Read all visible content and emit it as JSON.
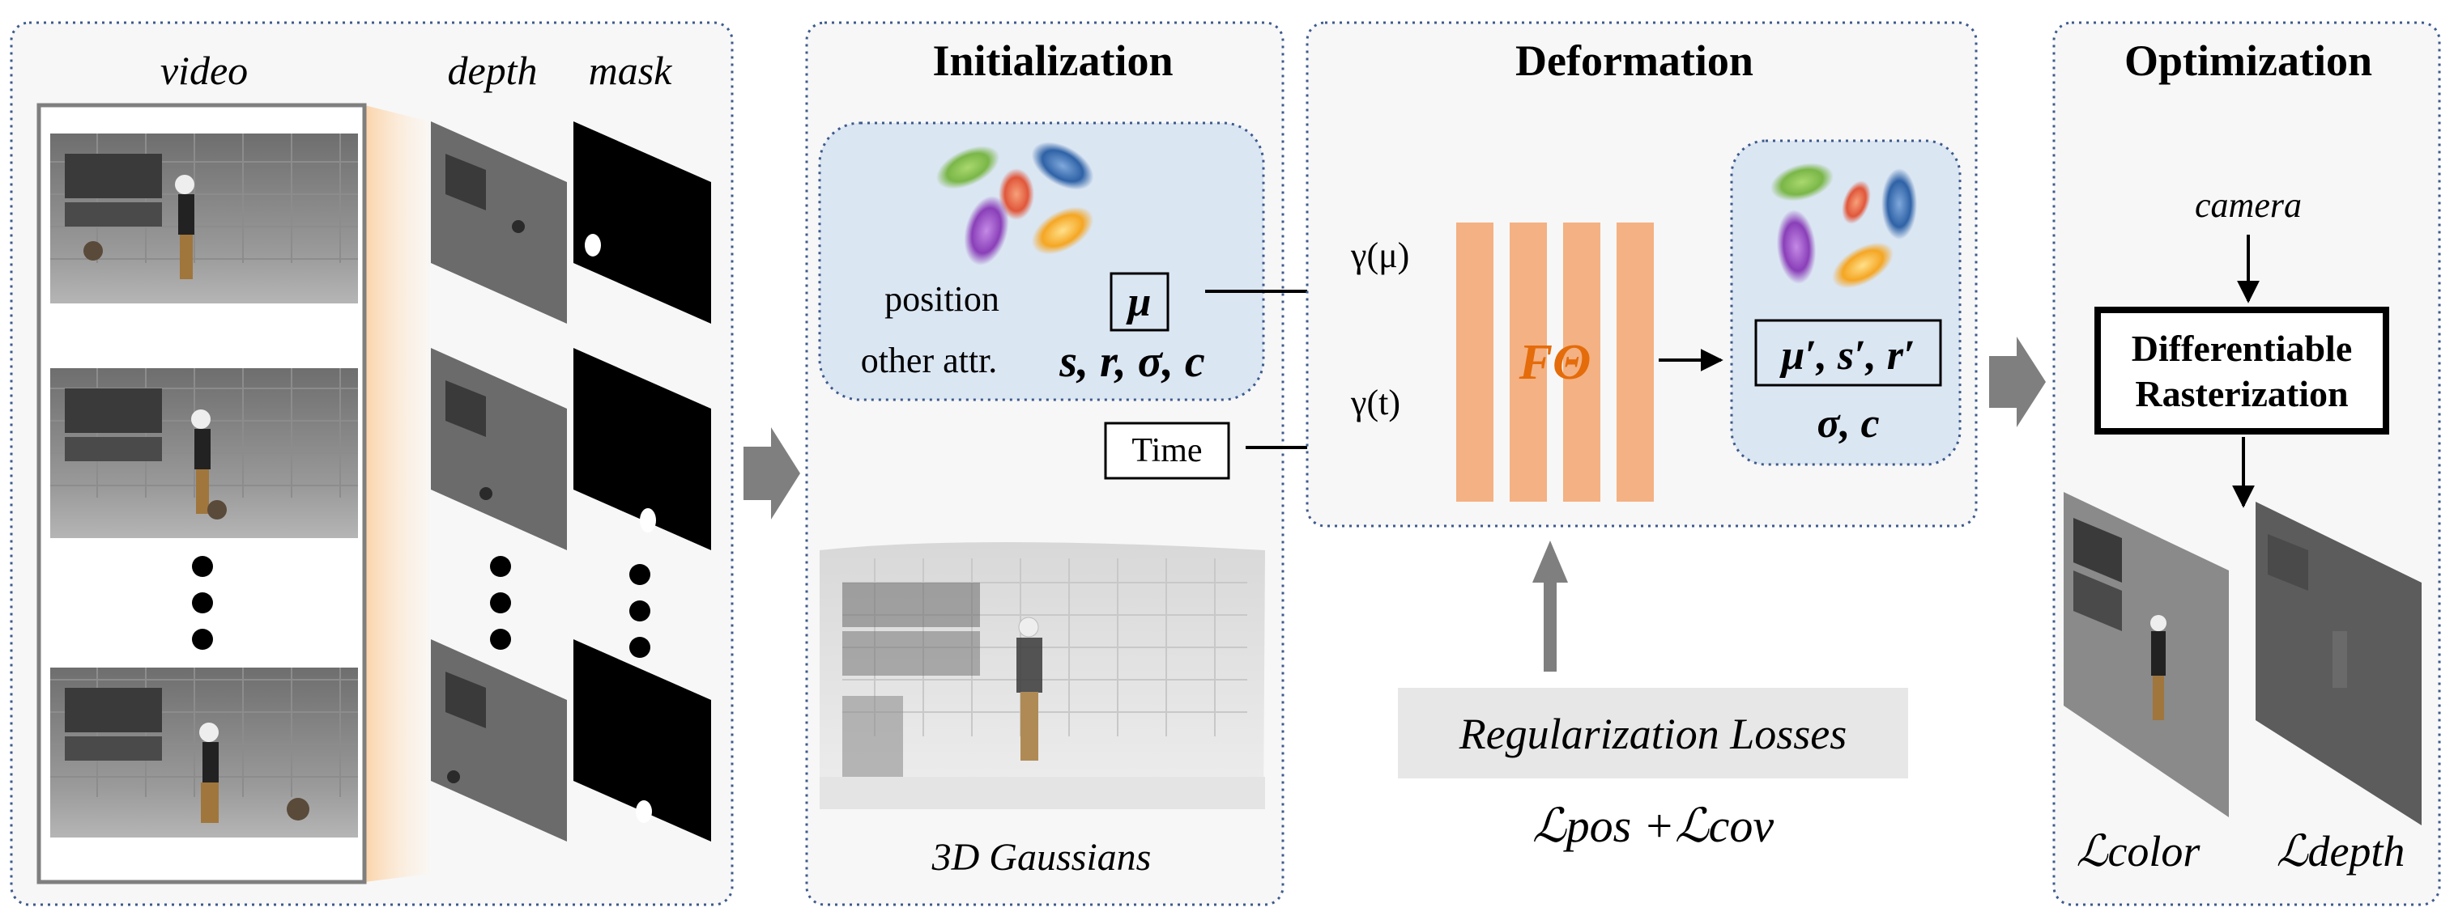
{
  "panels": {
    "input": {
      "video_label": "video",
      "depth_label": "depth",
      "mask_label": "mask"
    },
    "initialization": {
      "title": "Initialization",
      "position_label": "position",
      "other_attr_label": "other attr.",
      "mu_symbol": "μ",
      "attrs": "s, r, σ, c",
      "time_label": "Time",
      "gaussians_caption": "3D Gaussians"
    },
    "deformation": {
      "title": "Deformation",
      "gamma_mu": "γ(μ)",
      "gamma_t": "γ(t)",
      "network_label": "FΘ",
      "output_primed": "μ′, s′, r′",
      "output_rest": "σ, c",
      "reg_losses_label": "Regularization Losses",
      "reg_losses_formula": "ℒpos +ℒcov"
    },
    "optimization": {
      "title": "Optimization",
      "camera_label": "camera",
      "rasterizer_line1": "Differentiable",
      "rasterizer_line2": "Rasterization",
      "loss_color": "ℒcolor",
      "loss_depth": "ℒdepth"
    }
  },
  "colors": {
    "panel_border": "#3d5a8c",
    "panel_fill": "#f7f7f7",
    "blue_box": "#dbe6f3",
    "network_orange": "#f4b183",
    "network_text": "#e46c0a",
    "arrow_gray": "#7f7f7f",
    "reg_box": "#e7e7e7"
  },
  "gaussian_blobs": [
    {
      "color": "#7ab648"
    },
    {
      "color": "#3a6fb0"
    },
    {
      "color": "#e0573b"
    },
    {
      "color": "#8a3fb8"
    },
    {
      "color": "#f5b22a"
    }
  ]
}
